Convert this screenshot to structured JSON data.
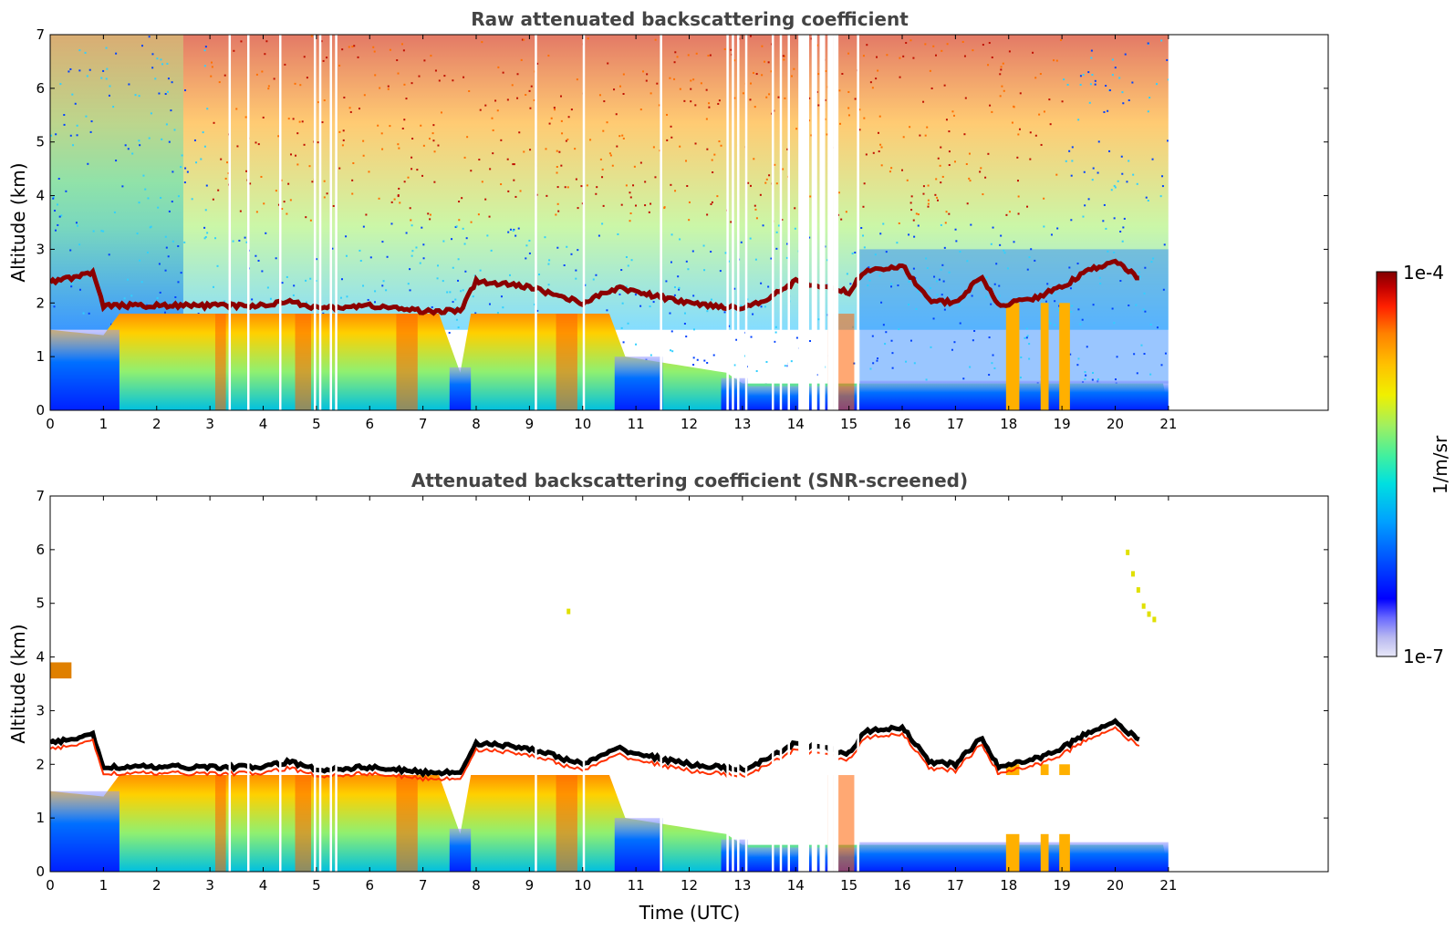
{
  "chart_data": [
    {
      "type": "heatmap",
      "title": "Raw attenuated backscattering coefficient",
      "xlabel": "",
      "ylabel": "Altitude (km)",
      "xlim": [
        0,
        24
      ],
      "ylim": [
        0,
        7
      ],
      "x_ticks": [
        "0",
        "1",
        "2",
        "3",
        "4",
        "5",
        "6",
        "7",
        "8",
        "9",
        "10",
        "11",
        "12",
        "13",
        "14",
        "15",
        "16",
        "17",
        "18",
        "19",
        "20",
        "21"
      ],
      "y_ticks": [
        "0",
        "1",
        "2",
        "3",
        "4",
        "5",
        "6",
        "7"
      ],
      "data_end_time": 21,
      "cloud_layer": [
        [
          0,
          2.4
        ],
        [
          0.8,
          2.55
        ],
        [
          1.0,
          1.95
        ],
        [
          1.5,
          1.95
        ],
        [
          2.5,
          1.95
        ],
        [
          3.0,
          1.95
        ],
        [
          4.0,
          1.95
        ],
        [
          4.5,
          2.05
        ],
        [
          5.0,
          1.9
        ],
        [
          6.0,
          1.95
        ],
        [
          7.0,
          1.85
        ],
        [
          7.7,
          1.85
        ],
        [
          8.0,
          2.4
        ],
        [
          9.0,
          2.3
        ],
        [
          10.0,
          2.0
        ],
        [
          10.7,
          2.3
        ],
        [
          11.0,
          2.2
        ],
        [
          12.0,
          2.0
        ],
        [
          13.0,
          1.9
        ],
        [
          13.5,
          2.1
        ],
        [
          14.0,
          2.4
        ],
        [
          15.0,
          2.2
        ],
        [
          15.3,
          2.6
        ],
        [
          16.0,
          2.7
        ],
        [
          16.5,
          2.05
        ],
        [
          17.0,
          2.0
        ],
        [
          17.5,
          2.5
        ],
        [
          17.8,
          1.95
        ],
        [
          18.5,
          2.1
        ],
        [
          19.0,
          2.3
        ],
        [
          19.5,
          2.6
        ],
        [
          20.0,
          2.8
        ],
        [
          20.5,
          2.4
        ]
      ],
      "boundary_layer_top": [
        [
          0,
          1.5
        ],
        [
          1.0,
          1.4
        ],
        [
          1.3,
          1.8
        ],
        [
          7.3,
          1.8
        ],
        [
          7.7,
          0.7
        ],
        [
          7.9,
          1.8
        ],
        [
          10.5,
          1.8
        ],
        [
          10.8,
          1.0
        ],
        [
          12.7,
          0.7
        ],
        [
          13.0,
          0.5
        ],
        [
          15.2,
          0.5
        ],
        [
          21,
          0.5
        ]
      ]
    },
    {
      "type": "heatmap",
      "title": "Attenuated backscattering coefficient (SNR-screened)",
      "xlabel": "Time (UTC)",
      "ylabel": "Altitude (km)",
      "xlim": [
        0,
        24
      ],
      "ylim": [
        0,
        7
      ],
      "x_ticks": [
        "0",
        "1",
        "2",
        "3",
        "4",
        "5",
        "6",
        "7",
        "8",
        "9",
        "10",
        "11",
        "12",
        "13",
        "14",
        "15",
        "16",
        "17",
        "18",
        "19",
        "20",
        "21"
      ],
      "y_ticks": [
        "0",
        "1",
        "2",
        "3",
        "4",
        "5",
        "6",
        "7"
      ],
      "data_end_time": 21
    }
  ],
  "colorbar": {
    "label": "1/m/sr",
    "max_label": "1e-4",
    "min_label": "1e-7",
    "scale": "log",
    "range": [
      1e-07,
      0.0001
    ],
    "colors": [
      "#e8e8f8",
      "#b8b8f0",
      "#6a6aff",
      "#0000ff",
      "#0050ff",
      "#00a0ff",
      "#00e0e0",
      "#40f0a0",
      "#a0f060",
      "#f0f000",
      "#ffc000",
      "#ff8000",
      "#ff2000",
      "#c00000",
      "#800000"
    ]
  }
}
